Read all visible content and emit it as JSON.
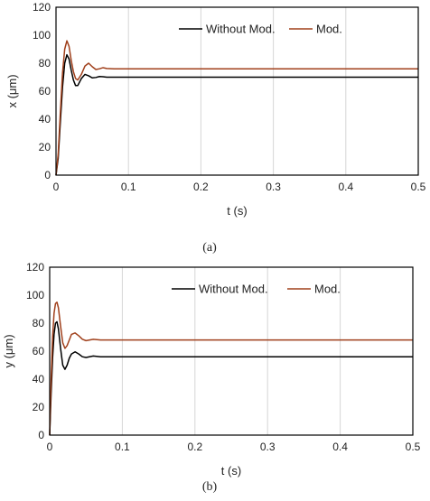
{
  "chart_data": [
    {
      "id": "a",
      "type": "line",
      "caption": "(a)",
      "xlabel": "t (s)",
      "ylabel": "x (μm)",
      "xlim": [
        0,
        0.5
      ],
      "ylim": [
        0,
        120
      ],
      "xticks": [
        0,
        0.1,
        0.2,
        0.3,
        0.4,
        0.5
      ],
      "xtick_labels": [
        "0",
        "0.1",
        "0.2",
        "0.3",
        "0.4",
        "0.5"
      ],
      "yticks": [
        0,
        20,
        40,
        60,
        80,
        100,
        120
      ],
      "ytick_labels": [
        "0",
        "20",
        "40",
        "60",
        "80",
        "100",
        "120"
      ],
      "grid": "vertical",
      "legend_position": "top-right",
      "series": [
        {
          "name": "Without Mod.",
          "color": "#000000",
          "x": [
            0,
            0.003,
            0.006,
            0.009,
            0.012,
            0.015,
            0.018,
            0.021,
            0.024,
            0.027,
            0.03,
            0.035,
            0.04,
            0.045,
            0.05,
            0.055,
            0.06,
            0.065,
            0.07,
            0.08,
            0.09,
            0.1,
            0.2,
            0.3,
            0.4,
            0.5
          ],
          "y": [
            0,
            12,
            38,
            63,
            80,
            86,
            83,
            75,
            68,
            64,
            64,
            69,
            72,
            71,
            69.5,
            69.8,
            70.5,
            70.3,
            70,
            70,
            70,
            70,
            70,
            70,
            70,
            70
          ]
        },
        {
          "name": "Mod.",
          "color": "#a0401c",
          "x": [
            0,
            0.003,
            0.006,
            0.009,
            0.012,
            0.015,
            0.018,
            0.021,
            0.024,
            0.027,
            0.03,
            0.035,
            0.04,
            0.045,
            0.05,
            0.055,
            0.06,
            0.065,
            0.07,
            0.08,
            0.09,
            0.1,
            0.2,
            0.3,
            0.4,
            0.5
          ],
          "y": [
            0,
            15,
            45,
            73,
            90,
            96,
            92,
            82,
            74,
            69,
            68,
            72,
            78,
            80,
            77.5,
            75.5,
            76,
            76.8,
            76.2,
            76,
            76,
            76,
            76,
            76,
            76,
            76
          ]
        }
      ]
    },
    {
      "id": "b",
      "type": "line",
      "caption": "(b)",
      "xlabel": "t (s)",
      "ylabel": "y (μm)",
      "xlim": [
        0,
        0.5
      ],
      "ylim": [
        0,
        120
      ],
      "xticks": [
        0,
        0.1,
        0.2,
        0.3,
        0.4,
        0.5
      ],
      "xtick_labels": [
        "0",
        "0.1",
        "0.2",
        "0.3",
        "0.4",
        "0.5"
      ],
      "yticks": [
        0,
        20,
        40,
        60,
        80,
        100,
        120
      ],
      "ytick_labels": [
        "0",
        "20",
        "40",
        "60",
        "80",
        "100",
        "120"
      ],
      "grid": "vertical",
      "legend_position": "top-right",
      "series": [
        {
          "name": "Without Mod.",
          "color": "#000000",
          "x": [
            0,
            0.002,
            0.004,
            0.006,
            0.008,
            0.01,
            0.012,
            0.015,
            0.018,
            0.021,
            0.024,
            0.027,
            0.03,
            0.035,
            0.04,
            0.045,
            0.05,
            0.06,
            0.07,
            0.08,
            0.1,
            0.2,
            0.3,
            0.4,
            0.5
          ],
          "y": [
            0,
            30,
            55,
            72,
            80,
            81,
            76,
            62,
            50,
            47,
            50,
            55,
            58,
            59.5,
            58,
            56,
            55.5,
            56.5,
            56,
            56,
            56,
            56,
            56,
            56,
            56
          ]
        },
        {
          "name": "Mod.",
          "color": "#a0401c",
          "x": [
            0,
            0.002,
            0.004,
            0.006,
            0.008,
            0.01,
            0.012,
            0.015,
            0.018,
            0.021,
            0.024,
            0.027,
            0.03,
            0.035,
            0.04,
            0.045,
            0.05,
            0.06,
            0.07,
            0.08,
            0.1,
            0.2,
            0.3,
            0.4,
            0.5
          ],
          "y": [
            0,
            40,
            70,
            87,
            94,
            95,
            91,
            78,
            66,
            62,
            64,
            68,
            72,
            73,
            71,
            68.5,
            67.5,
            68.5,
            68,
            68,
            68,
            68,
            68,
            68,
            68
          ]
        }
      ]
    }
  ]
}
